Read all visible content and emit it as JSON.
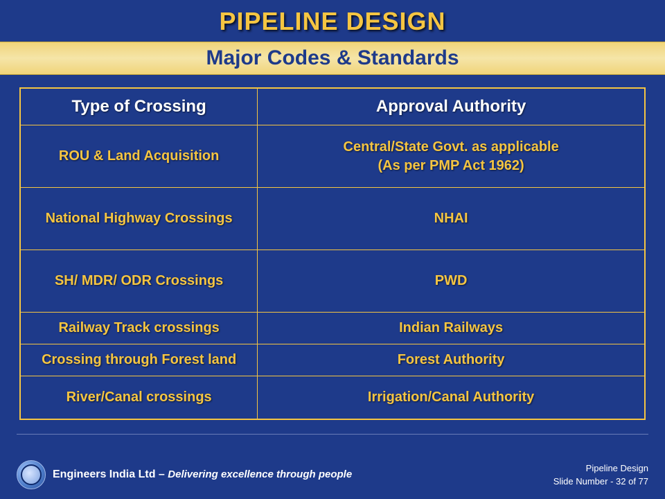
{
  "colors": {
    "slide_bg": "#1e3a8a",
    "accent_gold": "#f5c542",
    "subtitle_bar_start": "#f0d47a",
    "subtitle_bar_mid": "#f5e5a8",
    "header_text": "#ffffff",
    "table_border": "#f5c542",
    "cell_text": "#f5c542"
  },
  "typography": {
    "title_fontsize": 36,
    "subtitle_fontsize": 30,
    "header_fontsize": 24,
    "cell_fontsize": 20,
    "footer_fontsize": 13
  },
  "title": "PIPELINE DESIGN",
  "subtitle": "Major Codes & Standards",
  "table": {
    "type": "table",
    "columns": [
      "Type of Crossing",
      "Approval Authority"
    ],
    "col_widths_pct": [
      38,
      62
    ],
    "rows": [
      {
        "type": "ROU & Land Acquisition",
        "authority_line1": "Central/State Govt. as applicable",
        "authority_line2": "(As per PMP Act 1962)"
      },
      {
        "type": "National Highway Crossings",
        "authority": "NHAI"
      },
      {
        "type": "SH/ MDR/ ODR Crossings",
        "authority": "PWD"
      },
      {
        "type": "Railway Track crossings",
        "authority": "Indian Railways"
      },
      {
        "type": "Crossing through Forest land",
        "authority": "Forest Authority"
      },
      {
        "type": "River/Canal crossings",
        "authority": "Irrigation/Canal Authority"
      }
    ]
  },
  "footer": {
    "company": "Engineers India Ltd",
    "separator": " – ",
    "tagline": "Delivering excellence through people",
    "doc_title": "Pipeline Design",
    "slide_label": "Slide Number - 32 of  77"
  }
}
